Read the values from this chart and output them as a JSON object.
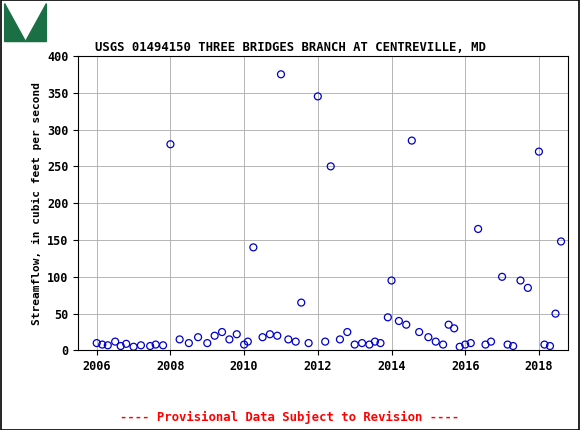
{
  "title": "USGS 01494150 THREE BRIDGES BRANCH AT CENTREVILLE, MD",
  "ylabel": "Streamflow, in cubic feet per second",
  "provisional_text": "---- Provisional Data Subject to Revision ----",
  "header_color": "#1a7044",
  "header_text": "USGS",
  "xlim": [
    2005.5,
    2018.8
  ],
  "ylim": [
    0,
    400
  ],
  "yticks": [
    0,
    50,
    100,
    150,
    200,
    250,
    300,
    350,
    400
  ],
  "xticks": [
    2006,
    2008,
    2010,
    2012,
    2014,
    2016,
    2018
  ],
  "marker_color": "#0000cc",
  "marker_size": 5,
  "data": [
    [
      2006.0,
      10
    ],
    [
      2006.15,
      8
    ],
    [
      2006.3,
      7
    ],
    [
      2006.5,
      12
    ],
    [
      2006.65,
      6
    ],
    [
      2006.8,
      9
    ],
    [
      2007.0,
      5
    ],
    [
      2007.2,
      7
    ],
    [
      2007.45,
      6
    ],
    [
      2007.6,
      8
    ],
    [
      2007.8,
      7
    ],
    [
      2008.0,
      280
    ],
    [
      2008.25,
      15
    ],
    [
      2008.5,
      10
    ],
    [
      2008.75,
      18
    ],
    [
      2009.0,
      10
    ],
    [
      2009.2,
      20
    ],
    [
      2009.4,
      25
    ],
    [
      2009.6,
      15
    ],
    [
      2009.8,
      22
    ],
    [
      2010.0,
      8
    ],
    [
      2010.1,
      12
    ],
    [
      2010.25,
      140
    ],
    [
      2010.5,
      18
    ],
    [
      2010.7,
      22
    ],
    [
      2010.9,
      20
    ],
    [
      2011.0,
      375
    ],
    [
      2011.2,
      15
    ],
    [
      2011.4,
      12
    ],
    [
      2011.55,
      65
    ],
    [
      2011.75,
      10
    ],
    [
      2012.0,
      345
    ],
    [
      2012.2,
      12
    ],
    [
      2012.35,
      250
    ],
    [
      2012.6,
      15
    ],
    [
      2012.8,
      25
    ],
    [
      2013.0,
      8
    ],
    [
      2013.2,
      10
    ],
    [
      2013.4,
      8
    ],
    [
      2013.55,
      12
    ],
    [
      2013.7,
      10
    ],
    [
      2013.9,
      45
    ],
    [
      2014.0,
      95
    ],
    [
      2014.2,
      40
    ],
    [
      2014.4,
      35
    ],
    [
      2014.55,
      285
    ],
    [
      2014.75,
      25
    ],
    [
      2015.0,
      18
    ],
    [
      2015.2,
      12
    ],
    [
      2015.4,
      8
    ],
    [
      2015.55,
      35
    ],
    [
      2015.7,
      30
    ],
    [
      2015.85,
      5
    ],
    [
      2016.0,
      8
    ],
    [
      2016.15,
      10
    ],
    [
      2016.35,
      165
    ],
    [
      2016.55,
      8
    ],
    [
      2016.7,
      12
    ],
    [
      2017.0,
      100
    ],
    [
      2017.15,
      8
    ],
    [
      2017.3,
      6
    ],
    [
      2017.5,
      95
    ],
    [
      2017.7,
      85
    ],
    [
      2018.0,
      270
    ],
    [
      2018.15,
      8
    ],
    [
      2018.3,
      6
    ],
    [
      2018.45,
      50
    ],
    [
      2018.6,
      148
    ]
  ],
  "background_color": "#ffffff",
  "grid_color": "#aaaaaa"
}
